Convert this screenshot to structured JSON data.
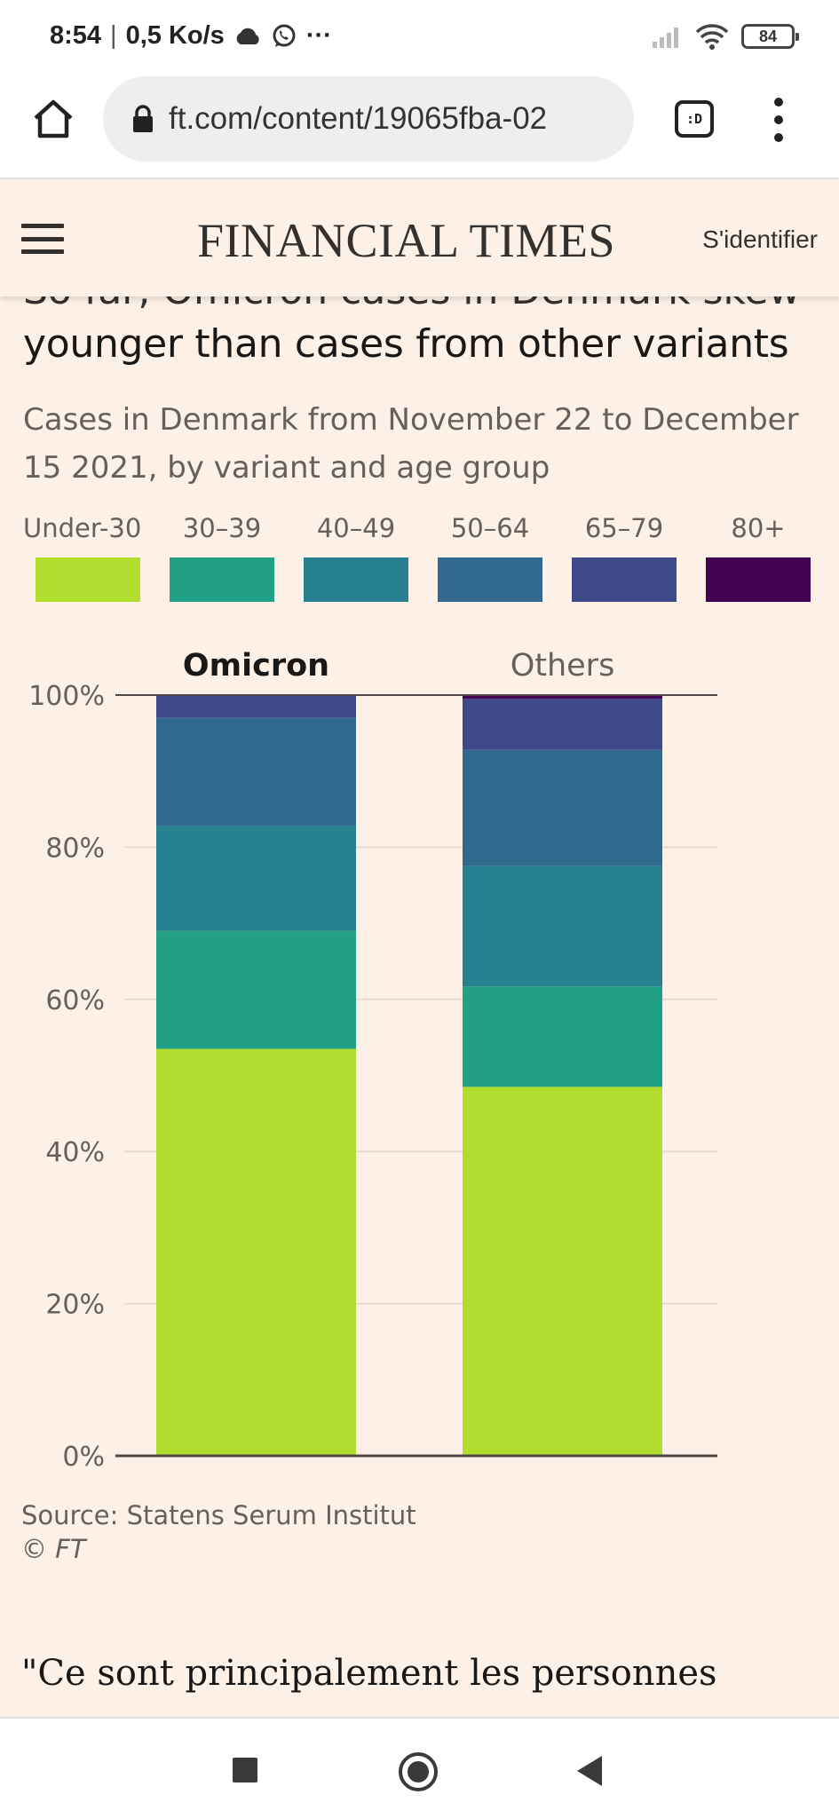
{
  "status_bar": {
    "time": "8:54",
    "speed": "0,5 Ko/s",
    "more": "···",
    "battery": "84",
    "icons": [
      "cloud-icon",
      "whatsapp-icon",
      "signal-icon",
      "wifi-icon",
      "battery-icon"
    ]
  },
  "browser": {
    "url": "ft.com/content/19065fba-02",
    "tabs_label": ":D",
    "icons": [
      "home-icon",
      "lock-icon",
      "tabs-icon",
      "kebab-menu-icon"
    ]
  },
  "header": {
    "logo": "FINANCIAL TIMES",
    "signin": "S'identifier"
  },
  "article": {
    "title_cut": "So far, Omicron cases in Denmark skew",
    "title_line": "younger than cases from other variants",
    "subtitle": "Cases in Denmark from November 22 to December 15 2021, by variant and age group",
    "source": "Source: Statens Serum Institut",
    "copyright": "© FT",
    "quote": "\"Ce sont principalement les personnes"
  },
  "chart_data": {
    "type": "bar",
    "stacked": true,
    "categories": [
      "Omicron",
      "Others"
    ],
    "series": [
      {
        "name": "Under-30",
        "color": "#b1dd2e",
        "values": [
          53.5,
          48.5
        ]
      },
      {
        "name": "30–39",
        "color": "#21a085",
        "values": [
          15.5,
          13.2
        ]
      },
      {
        "name": "40–49",
        "color": "#278190",
        "values": [
          13.8,
          15.8
        ]
      },
      {
        "name": "50–64",
        "color": "#306a8e",
        "values": [
          14.2,
          15.3
        ]
      },
      {
        "name": "65–79",
        "color": "#3e4a89",
        "values": [
          3.0,
          6.7
        ]
      },
      {
        "name": "80+",
        "color": "#440154",
        "values": [
          0.0,
          0.5
        ]
      }
    ],
    "y_ticks": [
      "0%",
      "20%",
      "40%",
      "60%",
      "80%",
      "100%"
    ],
    "ylim": [
      0,
      100
    ],
    "grid": true,
    "legend_position": "top"
  },
  "nav": {
    "icons": [
      "recent-apps-icon",
      "home-circle-icon",
      "back-icon"
    ]
  }
}
